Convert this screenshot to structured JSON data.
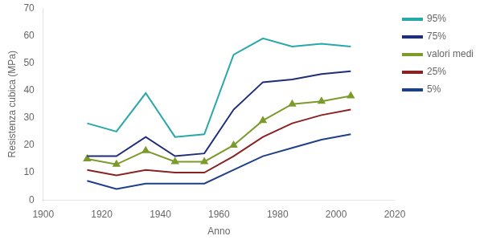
{
  "chart_data": {
    "type": "line",
    "x_label": "Anno",
    "y_label": "Resistenza cubica (MPa)",
    "x": [
      1915,
      1925,
      1935,
      1945,
      1955,
      1965,
      1975,
      1985,
      1995,
      2005
    ],
    "series": [
      {
        "name": "95%",
        "color": "#2AA8A8",
        "values": [
          28,
          25,
          39,
          23,
          24,
          53,
          59,
          56,
          57,
          56
        ]
      },
      {
        "name": "75%",
        "color": "#1F2D7B",
        "values": [
          16,
          16,
          23,
          16,
          17,
          33,
          43,
          44,
          46,
          47
        ]
      },
      {
        "name": "valori medi",
        "color": "#7B9B2A",
        "marker": "triangle",
        "values": [
          15,
          13,
          18,
          14,
          14,
          20,
          29,
          35,
          36,
          38
        ]
      },
      {
        "name": "25%",
        "color": "#8B2222",
        "values": [
          11,
          9,
          11,
          10,
          10,
          16,
          23,
          28,
          31,
          33
        ]
      },
      {
        "name": "5%",
        "color": "#1F3F8B",
        "values": [
          7,
          4,
          6,
          6,
          6,
          11,
          16,
          19,
          22,
          24
        ]
      }
    ],
    "xlim": [
      1900,
      2020
    ],
    "ylim": [
      0,
      70
    ],
    "xticks": [
      1900,
      1920,
      1940,
      1960,
      1980,
      2000,
      2020
    ],
    "yticks": [
      0,
      10,
      20,
      30,
      40,
      50,
      60,
      70
    ],
    "grid": false,
    "legend": "right"
  }
}
